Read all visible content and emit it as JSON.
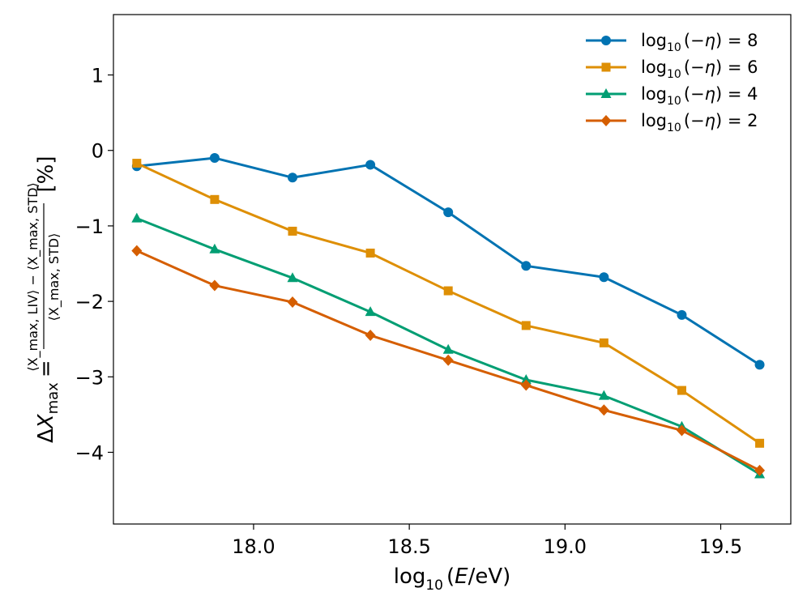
{
  "chart_data": {
    "type": "line",
    "x": [
      17.625,
      17.875,
      18.125,
      18.375,
      18.625,
      18.875,
      19.125,
      19.375,
      19.625
    ],
    "xlim": [
      17.55,
      19.725
    ],
    "ylim": [
      -4.95,
      1.8
    ],
    "xticks": [
      18.0,
      18.5,
      19.0,
      19.5
    ],
    "xtick_labels": [
      "18.0",
      "18.5",
      "19.0",
      "19.5"
    ],
    "yticks": [
      1,
      0,
      -1,
      -2,
      -3,
      -4
    ],
    "ytick_labels": [
      "1",
      "0",
      "−1",
      "−2",
      "−3",
      "−4"
    ],
    "xlabel": {
      "prefix": "log",
      "sub": "10",
      "suffix_open": "(",
      "var": "E",
      "suffix_close": "/eV)"
    },
    "ylabel": {
      "lhs_delta": "Δ",
      "lhs_var": "X",
      "lhs_sub": "max",
      "equals": "=",
      "numerator": "⟨X_max, LIV⟩ − ⟨X_max, STD⟩",
      "denominator": "⟨X_max, STD⟩",
      "unit": "[%]"
    },
    "grid": false,
    "legend_position": "top-right",
    "series": [
      {
        "name": "log₁₀(−η) = 8",
        "legend": {
          "pre": "log",
          "sub": "10",
          "mid": "(−",
          "greek": "η",
          "post": ") = 8"
        },
        "color": "#0173b2",
        "marker": "circle",
        "values": [
          -0.21,
          -0.1,
          -0.36,
          -0.19,
          -0.82,
          -1.53,
          -1.68,
          -2.18,
          -2.84
        ]
      },
      {
        "name": "log₁₀(−η) = 6",
        "legend": {
          "pre": "log",
          "sub": "10",
          "mid": "(−",
          "greek": "η",
          "post": ") = 6"
        },
        "color": "#de8f05",
        "marker": "square",
        "values": [
          -0.17,
          -0.65,
          -1.07,
          -1.36,
          -1.86,
          -2.32,
          -2.55,
          -3.18,
          -3.88
        ]
      },
      {
        "name": "log₁₀(−η) = 4",
        "legend": {
          "pre": "log",
          "sub": "10",
          "mid": "(−",
          "greek": "η",
          "post": ") = 4"
        },
        "color": "#029e73",
        "marker": "triangle",
        "values": [
          -0.9,
          -1.31,
          -1.69,
          -2.14,
          -2.64,
          -3.04,
          -3.25,
          -3.66,
          -4.29
        ]
      },
      {
        "name": "log₁₀(−η) = 2",
        "legend": {
          "pre": "log",
          "sub": "10",
          "mid": "(−",
          "greek": "η",
          "post": ") = 2"
        },
        "color": "#d55e00",
        "marker": "diamond",
        "values": [
          -1.33,
          -1.79,
          -2.01,
          -2.45,
          -2.78,
          -3.11,
          -3.44,
          -3.71,
          -4.24
        ]
      }
    ]
  }
}
